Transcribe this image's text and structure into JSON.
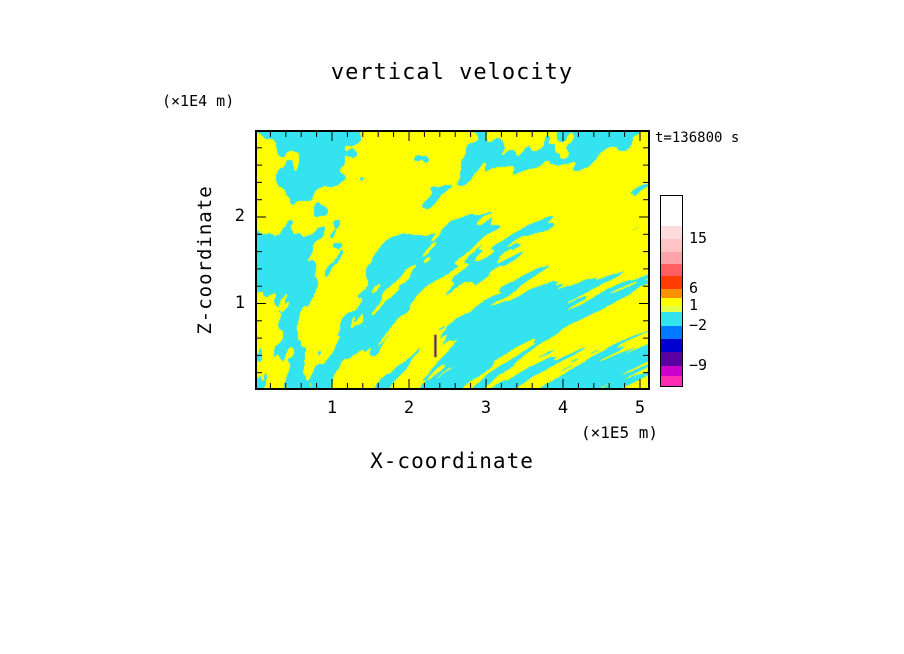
{
  "chart_data": {
    "type": "heatmap",
    "title": "vertical velocity",
    "xlabel": "X-coordinate",
    "ylabel": "Z-coordinate",
    "x_unit_label": "(×1E5 m)",
    "y_unit_label": "(×1E4 m)",
    "time_label": "t=136800 s",
    "x_ticks": [
      1,
      2,
      3,
      4,
      5
    ],
    "y_ticks": [
      1,
      2
    ],
    "xlim": [
      0,
      5.13
    ],
    "ylim": [
      0,
      3.0
    ],
    "x_minor_step": 0.2,
    "y_minor_step": 0.2,
    "grid": false,
    "field_summary": "two-level turbulent field: yellow = positive vertical velocity, cyan = negative vertical velocity",
    "field_colors": {
      "positive": "#ffff00",
      "negative": "#33e3f0"
    },
    "field_threshold": 0.482,
    "noise_seed": 20,
    "dark_dash": {
      "x": 2.33,
      "z_top": 0.64,
      "z_bottom": 0.38,
      "color": "#3a00a0"
    },
    "colorbar": {
      "position": "right",
      "tick_labels": [
        {
          "label": "15",
          "pos": 0.226
        },
        {
          "label": "6",
          "pos": 0.489
        },
        {
          "label": "1",
          "pos": 0.579
        },
        {
          "label": "−2",
          "pos": 0.684
        },
        {
          "label": "−9",
          "pos": 0.895
        }
      ],
      "segments": [
        {
          "color": "#ffffff",
          "h": 30
        },
        {
          "color": "#ffdcdc",
          "h": 13
        },
        {
          "color": "#ffc3c3",
          "h": 13
        },
        {
          "color": "#ffa3ab",
          "h": 12
        },
        {
          "color": "#ff5f5f",
          "h": 12
        },
        {
          "color": "#ff3c00",
          "h": 13
        },
        {
          "color": "#ff9100",
          "h": 9
        },
        {
          "color": "#ffff00",
          "h": 8
        },
        {
          "color": "#e2ff45",
          "h": 6
        },
        {
          "color": "#33e3f0",
          "h": 14
        },
        {
          "color": "#0078ff",
          "h": 13
        },
        {
          "color": "#0000d2",
          "h": 13
        },
        {
          "color": "#5a00a0",
          "h": 14
        },
        {
          "color": "#cc00cc",
          "h": 10
        },
        {
          "color": "#ff2cb4",
          "h": 10
        }
      ]
    }
  }
}
